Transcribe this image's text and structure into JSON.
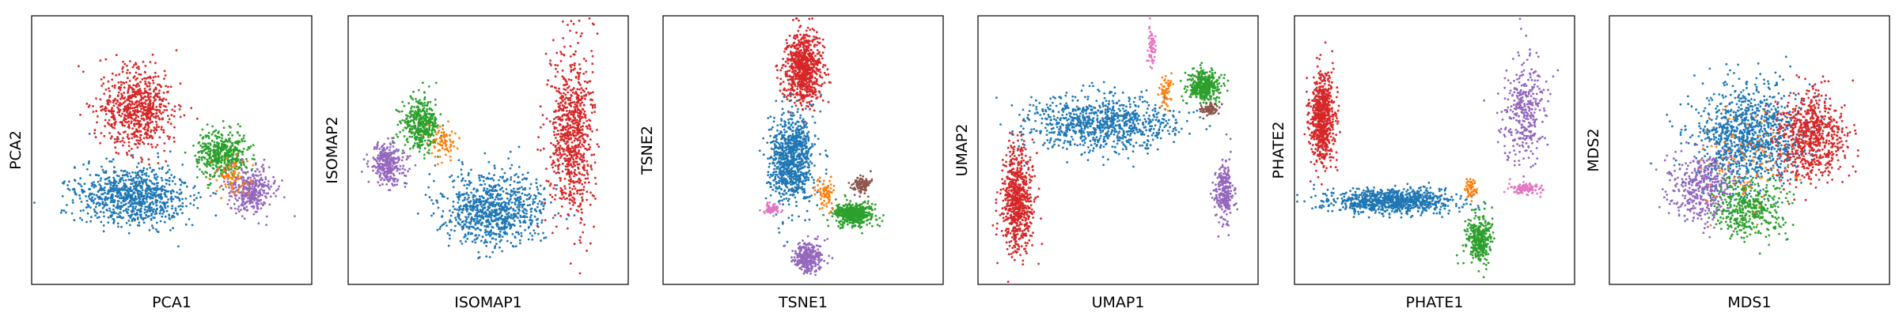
{
  "colors": {
    "blue": "#1f77b4",
    "orange": "#ff7f0e",
    "green": "#2ca02c",
    "red": "#d62728",
    "purple": "#9467bd",
    "brown": "#8c564b",
    "pink": "#e377c2"
  },
  "chart_data": [
    {
      "type": "scatter",
      "method": "PCA",
      "xlabel": "PCA1",
      "ylabel": "PCA2",
      "ticks": "none",
      "grid": false,
      "clusters": [
        {
          "color": "blue",
          "center": [
            0.36,
            0.67
          ],
          "spread": [
            0.18,
            0.1
          ],
          "count": 900
        },
        {
          "color": "red",
          "center": [
            0.38,
            0.35
          ],
          "spread": [
            0.12,
            0.14
          ],
          "count": 700
        },
        {
          "color": "green",
          "center": [
            0.68,
            0.52
          ],
          "spread": [
            0.08,
            0.08
          ],
          "count": 450
        },
        {
          "color": "purple",
          "center": [
            0.78,
            0.65
          ],
          "spread": [
            0.08,
            0.08
          ],
          "count": 350
        },
        {
          "color": "orange",
          "center": [
            0.72,
            0.6
          ],
          "spread": [
            0.05,
            0.06
          ],
          "count": 80
        }
      ]
    },
    {
      "type": "scatter",
      "method": "ISOMAP",
      "xlabel": "ISOMAP1",
      "ylabel": "ISOMAP2",
      "ticks": "none",
      "grid": false,
      "clusters": [
        {
          "color": "purple",
          "center": [
            0.14,
            0.55
          ],
          "spread": [
            0.06,
            0.07
          ],
          "count": 300
        },
        {
          "color": "green",
          "center": [
            0.26,
            0.4
          ],
          "spread": [
            0.06,
            0.08
          ],
          "count": 400
        },
        {
          "color": "orange",
          "center": [
            0.34,
            0.47
          ],
          "spread": [
            0.04,
            0.05
          ],
          "count": 80
        },
        {
          "color": "blue",
          "center": [
            0.52,
            0.72
          ],
          "spread": [
            0.16,
            0.12
          ],
          "count": 900
        },
        {
          "color": "red",
          "center": [
            0.8,
            0.45
          ],
          "spread": [
            0.07,
            0.28
          ],
          "count": 800
        }
      ]
    },
    {
      "type": "scatter",
      "method": "TSNE",
      "xlabel": "TSNE1",
      "ylabel": "TSNE2",
      "ticks": "none",
      "grid": false,
      "clusters": [
        {
          "color": "red",
          "center": [
            0.5,
            0.2
          ],
          "spread": [
            0.06,
            0.12
          ],
          "count": 800
        },
        {
          "color": "blue",
          "center": [
            0.46,
            0.53
          ],
          "spread": [
            0.07,
            0.15
          ],
          "count": 900
        },
        {
          "color": "green",
          "center": [
            0.68,
            0.74
          ],
          "spread": [
            0.06,
            0.04
          ],
          "count": 450
        },
        {
          "color": "brown",
          "center": [
            0.71,
            0.63
          ],
          "spread": [
            0.03,
            0.03
          ],
          "count": 100
        },
        {
          "color": "orange",
          "center": [
            0.58,
            0.66
          ],
          "spread": [
            0.03,
            0.05
          ],
          "count": 80
        },
        {
          "color": "pink",
          "center": [
            0.39,
            0.72
          ],
          "spread": [
            0.03,
            0.02
          ],
          "count": 80
        },
        {
          "color": "purple",
          "center": [
            0.52,
            0.9
          ],
          "spread": [
            0.05,
            0.05
          ],
          "count": 300
        }
      ]
    },
    {
      "type": "scatter",
      "method": "UMAP",
      "xlabel": "UMAP1",
      "ylabel": "UMAP2",
      "ticks": "none",
      "grid": false,
      "clusters": [
        {
          "color": "red",
          "center": [
            0.14,
            0.68
          ],
          "spread": [
            0.05,
            0.18
          ],
          "count": 700
        },
        {
          "color": "blue",
          "center": [
            0.45,
            0.4
          ],
          "spread": [
            0.24,
            0.09
          ],
          "count": 900
        },
        {
          "color": "green",
          "center": [
            0.81,
            0.26
          ],
          "spread": [
            0.05,
            0.05
          ],
          "count": 400
        },
        {
          "color": "brown",
          "center": [
            0.83,
            0.35
          ],
          "spread": [
            0.03,
            0.02
          ],
          "count": 80
        },
        {
          "color": "orange",
          "center": [
            0.67,
            0.28
          ],
          "spread": [
            0.02,
            0.06
          ],
          "count": 60
        },
        {
          "color": "pink",
          "center": [
            0.62,
            0.12
          ],
          "spread": [
            0.01,
            0.06
          ],
          "count": 60
        },
        {
          "color": "purple",
          "center": [
            0.88,
            0.66
          ],
          "spread": [
            0.03,
            0.1
          ],
          "count": 250
        }
      ]
    },
    {
      "type": "scatter",
      "method": "PHATE",
      "xlabel": "PHATE1",
      "ylabel": "PHATE2",
      "ticks": "none",
      "grid": false,
      "clusters": [
        {
          "color": "red",
          "center": [
            0.1,
            0.38
          ],
          "spread": [
            0.04,
            0.15
          ],
          "count": 700
        },
        {
          "color": "blue",
          "center": [
            0.35,
            0.69
          ],
          "spread": [
            0.2,
            0.04
          ],
          "count": 900
        },
        {
          "color": "green",
          "center": [
            0.66,
            0.83
          ],
          "spread": [
            0.04,
            0.08
          ],
          "count": 350
        },
        {
          "color": "orange",
          "center": [
            0.63,
            0.64
          ],
          "spread": [
            0.02,
            0.04
          ],
          "count": 60
        },
        {
          "color": "pink",
          "center": [
            0.82,
            0.64
          ],
          "spread": [
            0.05,
            0.02
          ],
          "count": 120
        },
        {
          "color": "purple",
          "center": [
            0.82,
            0.35
          ],
          "spread": [
            0.07,
            0.18
          ],
          "count": 350
        }
      ]
    },
    {
      "type": "scatter",
      "method": "MDS",
      "xlabel": "MDS1",
      "ylabel": "MDS2",
      "ticks": "none",
      "grid": false,
      "clusters": [
        {
          "color": "blue",
          "center": [
            0.5,
            0.45
          ],
          "spread": [
            0.18,
            0.18
          ],
          "count": 1100
        },
        {
          "color": "red",
          "center": [
            0.72,
            0.45
          ],
          "spread": [
            0.11,
            0.14
          ],
          "count": 700
        },
        {
          "color": "purple",
          "center": [
            0.33,
            0.64
          ],
          "spread": [
            0.11,
            0.12
          ],
          "count": 400
        },
        {
          "color": "green",
          "center": [
            0.5,
            0.72
          ],
          "spread": [
            0.12,
            0.1
          ],
          "count": 400
        },
        {
          "color": "orange",
          "center": [
            0.5,
            0.55
          ],
          "spread": [
            0.15,
            0.15
          ],
          "count": 100
        }
      ]
    }
  ]
}
